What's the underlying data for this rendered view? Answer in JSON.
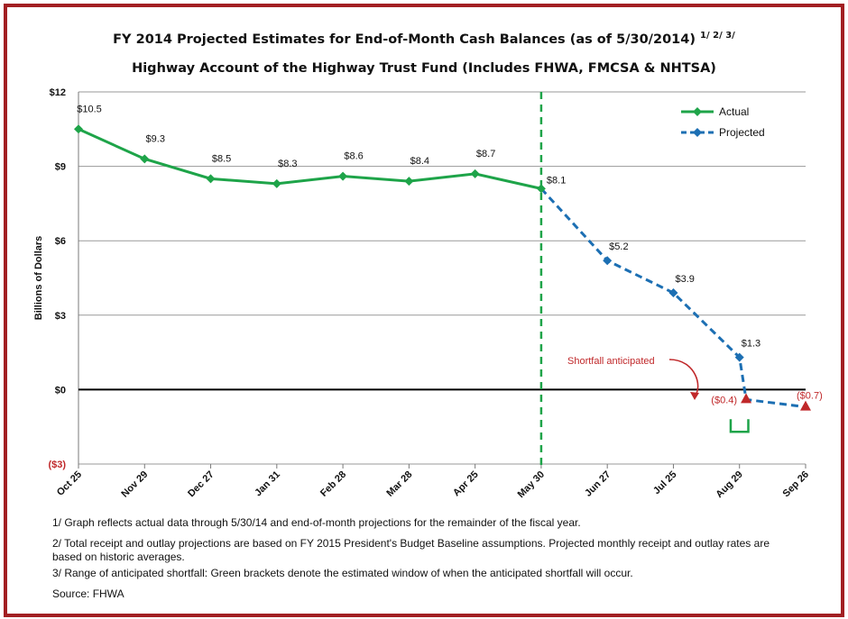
{
  "title": "FY 2014 Projected Estimates for End-of-Month Cash Balances (as of 5/30/2014)",
  "title_superscript": "1/ 2/ 3/",
  "subtitle": "Highway Account of the Highway Trust Fund (Includes FHWA, FMCSA & NHTSA)",
  "notes": {
    "note1": "1/ Graph reflects actual data through 5/30/14 and end-of-month projections for the remainder of the fiscal year.",
    "note2": "2/ Total receipt and outlay projections are based on FY 2015 President's Budget Baseline assumptions.  Projected monthly receipt and outlay rates are based on historic averages.",
    "note3": "3/ Range of anticipated shortfall: Green brackets denote the estimated window of when the anticipated shortfall will occur.",
    "source": "Source: FHWA"
  },
  "colors": {
    "actual": "#1ea449",
    "projected": "#1c6fb3",
    "negative": "#c0282a",
    "frame": "#a21f22",
    "grid": "#9a9a9a"
  },
  "chart_data": {
    "type": "line",
    "title": "FY 2014 Projected Estimates for End-of-Month Cash Balances (as of 5/30/2014)",
    "subtitle": "Highway Account of the Highway Trust Fund (Includes FHWA, FMCSA & NHTSA)",
    "xlabel": "",
    "ylabel": "Billions of Dollars",
    "ylim": [
      -3,
      12
    ],
    "yticks": [
      -3,
      0,
      3,
      6,
      9,
      12
    ],
    "ytick_labels": [
      "($3)",
      "$0",
      "$3",
      "$6",
      "$9",
      "$12"
    ],
    "categories": [
      "Oct 25",
      "Nov 29",
      "Dec 27",
      "Jan 31",
      "Feb 28",
      "Mar 28",
      "Apr 25",
      "May 30",
      "Jun 27",
      "Jul 25",
      "Aug 29",
      "Sep 26"
    ],
    "grid": true,
    "legend_position": "top-right",
    "series": [
      {
        "name": "Actual",
        "style": "solid",
        "color": "#1ea449",
        "x": [
          "Oct 25",
          "Nov 29",
          "Dec 27",
          "Jan 31",
          "Feb 28",
          "Mar 28",
          "Apr 25",
          "May 30"
        ],
        "values": [
          10.5,
          9.3,
          8.5,
          8.3,
          8.6,
          8.4,
          8.7,
          8.1
        ],
        "labels": [
          "$10.5",
          "$9.3",
          "$8.5",
          "$8.3",
          "$8.6",
          "$8.4",
          "$8.7",
          "$8.1"
        ]
      },
      {
        "name": "Projected",
        "style": "dashed",
        "color": "#1c6fb3",
        "x": [
          "May 30",
          "Jun 27",
          "Jul 25",
          "Aug 29",
          "Aug 29",
          "Sep 26"
        ],
        "x_offset_days": [
          0,
          0,
          0,
          0,
          3,
          0
        ],
        "values": [
          8.1,
          5.2,
          3.9,
          1.3,
          -0.4,
          -0.7
        ],
        "labels": [
          "",
          "$5.2",
          "$3.9",
          "$1.3",
          "($0.4)",
          "($0.7)"
        ]
      }
    ],
    "annotations": [
      {
        "text": "Shortfall anticipated",
        "color": "#c0282a",
        "points_to": "($0.4)"
      }
    ],
    "reference_lines": [
      {
        "type": "vertical",
        "at": "May 30",
        "style": "dashed",
        "color": "#1ea449"
      },
      {
        "type": "horizontal",
        "at": 0,
        "style": "solid",
        "color": "#000000"
      }
    ],
    "bracket": {
      "color": "#1ea449",
      "from_category": "Aug 29",
      "offset_days_from": -4,
      "offset_days_to": 4,
      "y": -1.7
    }
  }
}
